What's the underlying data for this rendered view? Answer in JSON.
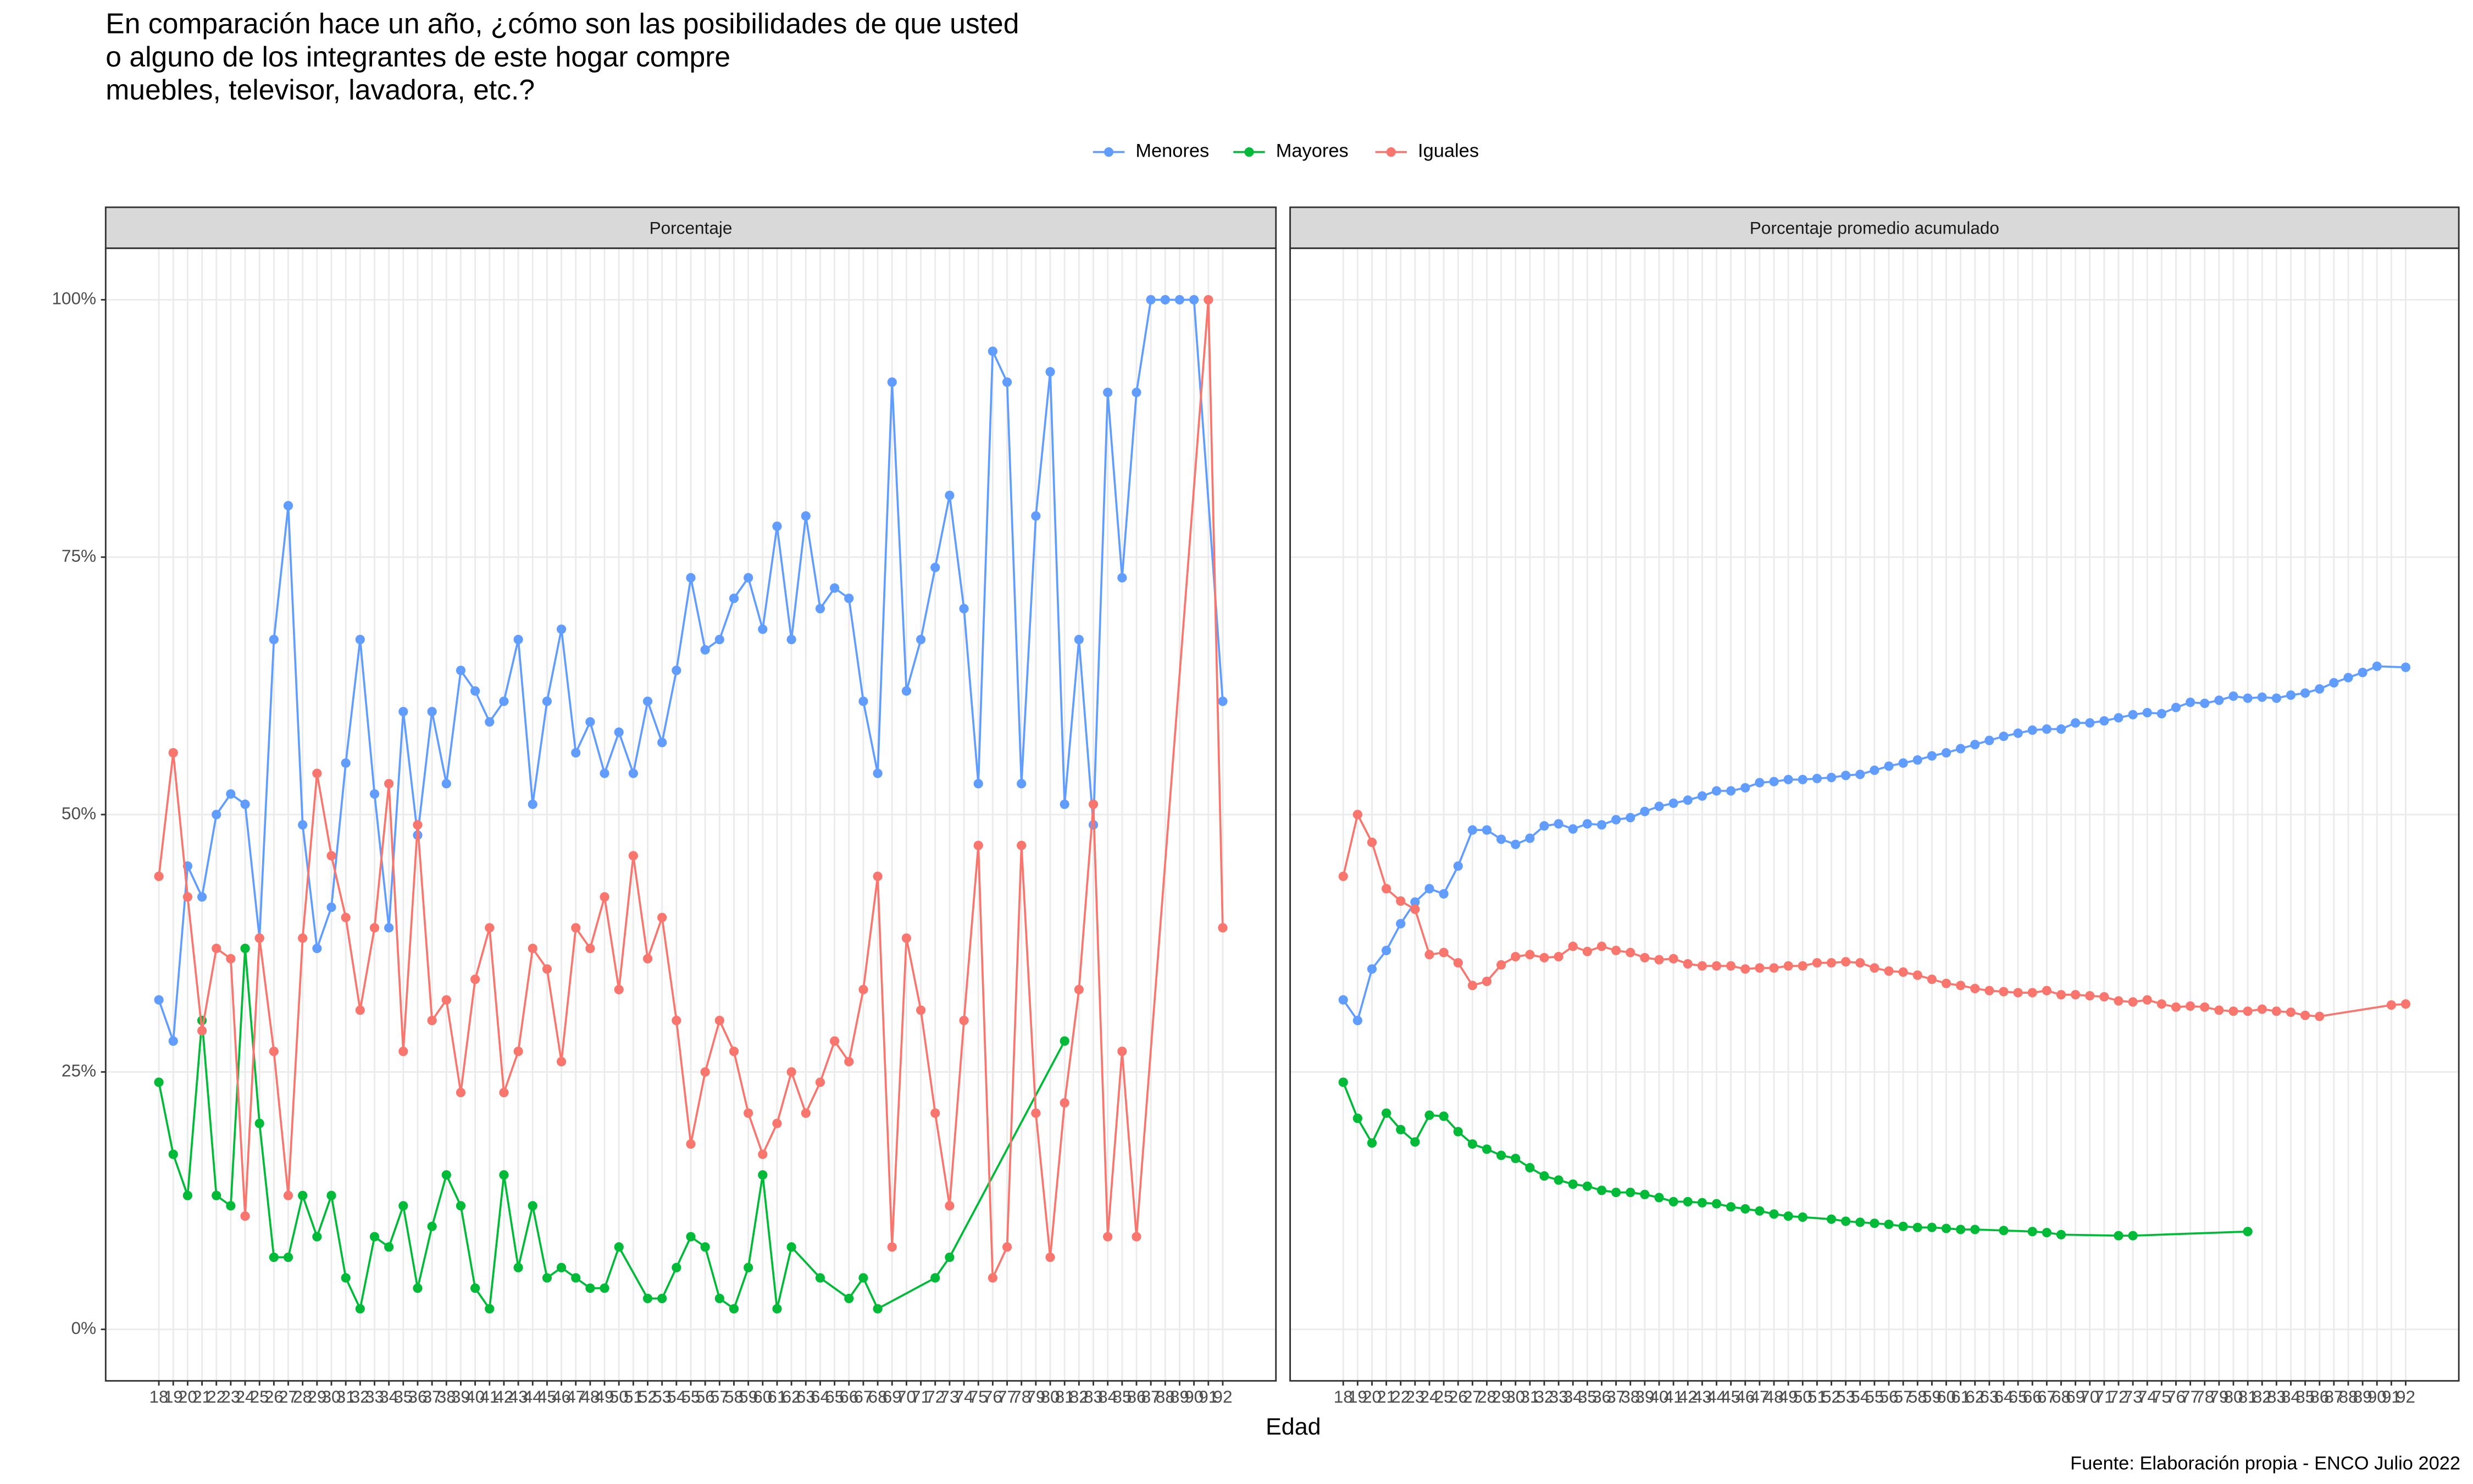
{
  "title": [
    "En comparación hace un año, ¿cómo son las posibilidades de que usted",
    "o alguno de los integrantes de este hogar compre",
    "muebles, televisor, lavadora, etc.?"
  ],
  "x_label": "Edad",
  "caption": "Fuente: Elaboración propia - ENCO Julio 2022",
  "legend": "top",
  "chart_data": [
    {
      "type": "line",
      "title": "Porcentaje",
      "xlim": [
        14.3,
        95.7
      ],
      "ylim": [
        -5,
        105
      ],
      "grid": true,
      "yticks": [
        {
          "value": 0,
          "label": "0%"
        },
        {
          "value": 25,
          "label": "25%"
        },
        {
          "value": 50,
          "label": "50%"
        },
        {
          "value": 75,
          "label": "75%"
        },
        {
          "value": 100,
          "label": "100%"
        }
      ],
      "xticks": [
        18,
        19,
        20,
        21,
        22,
        23,
        24,
        25,
        26,
        27,
        28,
        29,
        30,
        31,
        32,
        33,
        34,
        35,
        36,
        37,
        38,
        39,
        40,
        41,
        42,
        43,
        44,
        45,
        46,
        47,
        48,
        49,
        50,
        51,
        52,
        53,
        54,
        55,
        56,
        57,
        58,
        59,
        60,
        61,
        62,
        63,
        64,
        65,
        66,
        67,
        68,
        69,
        70,
        71,
        72,
        73,
        74,
        75,
        76,
        77,
        78,
        79,
        80,
        81,
        82,
        83,
        84,
        85,
        86,
        87,
        88,
        89,
        90,
        91,
        92
      ],
      "series": [
        {
          "name": "Menores",
          "color": "#619CFF",
          "x": [
            18,
            19,
            20,
            21,
            22,
            23,
            24,
            25,
            26,
            27,
            28,
            29,
            30,
            31,
            32,
            33,
            34,
            35,
            36,
            37,
            38,
            39,
            40,
            41,
            42,
            43,
            44,
            45,
            46,
            47,
            48,
            49,
            50,
            51,
            52,
            53,
            54,
            55,
            56,
            57,
            58,
            59,
            60,
            61,
            62,
            63,
            64,
            65,
            66,
            67,
            68,
            69,
            70,
            71,
            72,
            73,
            74,
            75,
            76,
            77,
            78,
            79,
            80,
            81,
            82,
            83,
            84,
            85,
            86,
            87,
            88,
            89,
            90,
            92
          ],
          "values": [
            32,
            28,
            45,
            42,
            50,
            52,
            51,
            38,
            67,
            80,
            49,
            37,
            41,
            55,
            67,
            52,
            39,
            60,
            48,
            60,
            53,
            64,
            62,
            59,
            61,
            67,
            51,
            61,
            68,
            56,
            59,
            54,
            58,
            54,
            61,
            57,
            64,
            73,
            66,
            67,
            71,
            73,
            68,
            78,
            67,
            79,
            70,
            72,
            71,
            61,
            54,
            92,
            62,
            67,
            74,
            81,
            70,
            53,
            95,
            92,
            53,
            79,
            93,
            51,
            67,
            49,
            91,
            73,
            91,
            100,
            100,
            100,
            100,
            61
          ]
        },
        {
          "name": "Mayores",
          "color": "#00BA38",
          "x": [
            18,
            19,
            20,
            21,
            22,
            23,
            24,
            25,
            26,
            27,
            28,
            29,
            30,
            31,
            32,
            33,
            34,
            35,
            36,
            37,
            38,
            39,
            40,
            41,
            42,
            43,
            44,
            45,
            46,
            47,
            48,
            49,
            50,
            52,
            53,
            54,
            55,
            56,
            57,
            58,
            59,
            60,
            61,
            62,
            64,
            66,
            67,
            68,
            72,
            73,
            81
          ],
          "values": [
            24,
            17,
            13,
            30,
            13,
            12,
            37,
            20,
            7,
            7,
            13,
            9,
            13,
            5,
            2,
            9,
            8,
            12,
            4,
            10,
            15,
            12,
            4,
            2,
            15,
            6,
            12,
            5,
            6,
            5,
            4,
            4,
            8,
            3,
            3,
            6,
            9,
            8,
            3,
            2,
            6,
            15,
            2,
            8,
            5,
            3,
            5,
            2,
            5,
            7,
            28
          ]
        },
        {
          "name": "Iguales",
          "color": "#F8766D",
          "x": [
            18,
            19,
            20,
            21,
            22,
            23,
            24,
            25,
            26,
            27,
            28,
            29,
            30,
            31,
            32,
            33,
            34,
            35,
            36,
            37,
            38,
            39,
            40,
            41,
            42,
            43,
            44,
            45,
            46,
            47,
            48,
            49,
            50,
            51,
            52,
            53,
            54,
            55,
            56,
            57,
            58,
            59,
            60,
            61,
            62,
            63,
            64,
            65,
            66,
            67,
            68,
            69,
            70,
            71,
            72,
            73,
            74,
            75,
            76,
            77,
            78,
            79,
            80,
            81,
            82,
            83,
            84,
            85,
            86,
            91,
            92
          ],
          "values": [
            44,
            56,
            42,
            29,
            37,
            36,
            11,
            38,
            27,
            13,
            38,
            54,
            46,
            40,
            31,
            39,
            53,
            27,
            49,
            30,
            32,
            23,
            34,
            39,
            23,
            27,
            37,
            35,
            26,
            39,
            37,
            42,
            33,
            46,
            36,
            40,
            30,
            18,
            25,
            30,
            27,
            21,
            17,
            20,
            25,
            21,
            24,
            28,
            26,
            33,
            44,
            8,
            38,
            31,
            21,
            12,
            30,
            47,
            5,
            8,
            47,
            21,
            7,
            22,
            33,
            51,
            9,
            27,
            9,
            100,
            39
          ]
        }
      ]
    },
    {
      "type": "line",
      "title": "Porcentaje promedio acumulado",
      "xlim": [
        14.3,
        95.7
      ],
      "ylim": [
        -5,
        105
      ],
      "grid": true,
      "xticks": [
        18,
        19,
        20,
        21,
        22,
        23,
        24,
        25,
        26,
        27,
        28,
        29,
        30,
        31,
        32,
        33,
        34,
        35,
        36,
        37,
        38,
        39,
        40,
        41,
        42,
        43,
        44,
        45,
        46,
        47,
        48,
        49,
        50,
        51,
        52,
        53,
        54,
        55,
        56,
        57,
        58,
        59,
        60,
        61,
        62,
        63,
        64,
        65,
        66,
        67,
        68,
        69,
        70,
        71,
        72,
        73,
        74,
        75,
        76,
        77,
        78,
        79,
        80,
        81,
        82,
        83,
        84,
        85,
        86,
        87,
        88,
        89,
        90,
        91,
        92
      ],
      "series": [
        {
          "name": "Menores",
          "color": "#619CFF",
          "x": [
            18,
            19,
            20,
            21,
            22,
            23,
            24,
            25,
            26,
            27,
            28,
            29,
            30,
            31,
            32,
            33,
            34,
            35,
            36,
            37,
            38,
            39,
            40,
            41,
            42,
            43,
            44,
            45,
            46,
            47,
            48,
            49,
            50,
            51,
            52,
            53,
            54,
            55,
            56,
            57,
            58,
            59,
            60,
            61,
            62,
            63,
            64,
            65,
            66,
            67,
            68,
            69,
            70,
            71,
            72,
            73,
            74,
            75,
            76,
            77,
            78,
            79,
            80,
            81,
            82,
            83,
            84,
            85,
            86,
            87,
            88,
            89,
            90,
            92
          ],
          "values": [
            32,
            30,
            35,
            36.8,
            39.4,
            41.5,
            42.8,
            42.3,
            45,
            48.5,
            48.5,
            47.6,
            47.1,
            47.7,
            48.9,
            49.1,
            48.6,
            49.1,
            49,
            49.5,
            49.7,
            50.3,
            50.8,
            51.1,
            51.4,
            51.8,
            52.3,
            52.3,
            52.6,
            53.1,
            53.2,
            53.4,
            53.4,
            53.5,
            53.6,
            53.8,
            53.9,
            54.3,
            54.7,
            55,
            55.3,
            55.7,
            56,
            56.4,
            56.8,
            57.2,
            57.6,
            57.9,
            58.2,
            58.3,
            58.3,
            58.9,
            58.9,
            59.1,
            59.4,
            59.7,
            59.9,
            59.8,
            60.4,
            60.9,
            60.8,
            61.1,
            61.5,
            61.3,
            61.4,
            61.3,
            61.6,
            61.8,
            62.2,
            62.8,
            63.3,
            63.8,
            64.4,
            64.3
          ]
        },
        {
          "name": "Mayores",
          "color": "#00BA38",
          "x": [
            18,
            19,
            20,
            21,
            22,
            23,
            24,
            25,
            26,
            27,
            28,
            29,
            30,
            31,
            32,
            33,
            34,
            35,
            36,
            37,
            38,
            39,
            40,
            41,
            42,
            43,
            44,
            45,
            46,
            47,
            48,
            49,
            50,
            52,
            53,
            54,
            55,
            56,
            57,
            58,
            59,
            60,
            61,
            62,
            64,
            66,
            67,
            68,
            72,
            73,
            81
          ],
          "values": [
            24,
            20.5,
            18.1,
            21,
            19.4,
            18.2,
            20.8,
            20.7,
            19.2,
            18,
            17.5,
            16.9,
            16.6,
            15.7,
            14.9,
            14.5,
            14.1,
            13.9,
            13.5,
            13.3,
            13.3,
            13.1,
            12.8,
            12.4,
            12.4,
            12.3,
            12.2,
            11.9,
            11.7,
            11.5,
            11.2,
            11,
            10.9,
            10.7,
            10.5,
            10.4,
            10.3,
            10.2,
            10,
            9.9,
            9.9,
            9.8,
            9.7,
            9.7,
            9.6,
            9.5,
            9.4,
            9.2,
            9.1,
            9.1,
            9.5
          ]
        },
        {
          "name": "Iguales",
          "color": "#F8766D",
          "x": [
            18,
            19,
            20,
            21,
            22,
            23,
            24,
            25,
            26,
            27,
            28,
            29,
            30,
            31,
            32,
            33,
            34,
            35,
            36,
            37,
            38,
            39,
            40,
            41,
            42,
            43,
            44,
            45,
            46,
            47,
            48,
            49,
            50,
            51,
            52,
            53,
            54,
            55,
            56,
            57,
            58,
            59,
            60,
            61,
            62,
            63,
            64,
            65,
            66,
            67,
            68,
            69,
            70,
            71,
            72,
            73,
            74,
            75,
            76,
            77,
            78,
            79,
            80,
            81,
            82,
            83,
            84,
            85,
            86,
            91,
            92
          ],
          "values": [
            44,
            50,
            47.3,
            42.8,
            41.6,
            40.8,
            36.4,
            36.6,
            35.6,
            33.4,
            33.8,
            35.4,
            36.2,
            36.4,
            36.1,
            36.2,
            37.2,
            36.7,
            37.2,
            36.8,
            36.6,
            36.1,
            35.9,
            36,
            35.5,
            35.3,
            35.3,
            35.3,
            35,
            35.1,
            35.1,
            35.3,
            35.3,
            35.6,
            35.6,
            35.7,
            35.6,
            35.1,
            34.8,
            34.7,
            34.4,
            34,
            33.6,
            33.4,
            33.1,
            32.9,
            32.8,
            32.7,
            32.7,
            32.9,
            32.5,
            32.5,
            32.4,
            32.3,
            31.9,
            31.8,
            32,
            31.6,
            31.3,
            31.4,
            31.3,
            31,
            30.9,
            30.9,
            31.1,
            30.9,
            30.8,
            30.5,
            30.4,
            31.5,
            31.6
          ]
        }
      ]
    }
  ]
}
